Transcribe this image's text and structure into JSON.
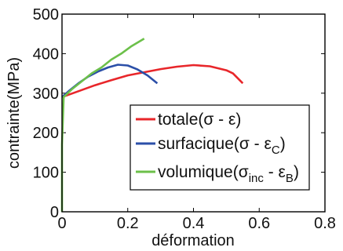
{
  "chart_data": {
    "type": "line",
    "xlabel": "déformation",
    "ylabel": "contrainte(MPa)",
    "xlim": [
      0,
      0.8
    ],
    "ylim": [
      0,
      500
    ],
    "xticks": [
      0,
      0.2,
      0.4,
      0.6,
      0.8
    ],
    "xtick_labels": [
      "0",
      "0.2",
      "0.4",
      "0.6",
      "0.8"
    ],
    "yticks": [
      0,
      100,
      200,
      300,
      400,
      500
    ],
    "ytick_labels": [
      "0",
      "100",
      "200",
      "300",
      "400",
      "500"
    ],
    "grid": false,
    "legend_position": "center-right",
    "series": [
      {
        "key": "totale",
        "legend": "totale(σ - ε)",
        "color": "#e8262a",
        "points": [
          [
            0,
            290
          ],
          [
            0.05,
            305
          ],
          [
            0.1,
            320
          ],
          [
            0.15,
            333
          ],
          [
            0.2,
            345
          ],
          [
            0.25,
            353
          ],
          [
            0.3,
            361
          ],
          [
            0.35,
            367
          ],
          [
            0.4,
            371
          ],
          [
            0.45,
            368
          ],
          [
            0.5,
            358
          ],
          [
            0.52,
            350
          ],
          [
            0.55,
            325
          ]
        ]
      },
      {
        "key": "surfacique",
        "legend": "surfacique(σ - εC)",
        "color": "#2b4fa8",
        "points": [
          [
            0,
            290
          ],
          [
            0.02,
            305
          ],
          [
            0.05,
            325
          ],
          [
            0.08,
            342
          ],
          [
            0.11,
            355
          ],
          [
            0.14,
            365
          ],
          [
            0.17,
            372
          ],
          [
            0.2,
            370
          ],
          [
            0.23,
            360
          ],
          [
            0.26,
            345
          ],
          [
            0.29,
            325
          ]
        ]
      },
      {
        "key": "volumique",
        "legend": "volumique(σinc - εB)",
        "color": "#6cc04a",
        "points": [
          [
            0,
            0
          ],
          [
            0,
            170
          ],
          [
            0.005,
            290
          ],
          [
            0.03,
            310
          ],
          [
            0.06,
            330
          ],
          [
            0.09,
            350
          ],
          [
            0.12,
            365
          ],
          [
            0.15,
            385
          ],
          [
            0.18,
            400
          ],
          [
            0.21,
            418
          ],
          [
            0.25,
            438
          ]
        ]
      }
    ],
    "legend_parts": {
      "totale": {
        "name": "totale",
        "open": "(σ - ε)"
      },
      "surfacique": {
        "name": "surfacique",
        "open": "(σ - ε",
        "sub": "C",
        "close": ")"
      },
      "volumique": {
        "name": "volumique",
        "open": "(σ",
        "sub1": "inc",
        "mid": " - ε",
        "sub2": "B",
        "close": ")"
      }
    }
  }
}
